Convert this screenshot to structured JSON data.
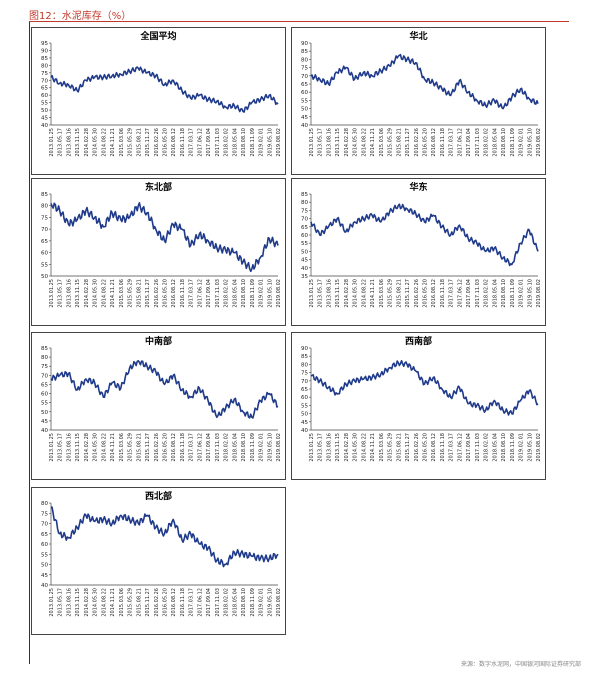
{
  "header": {
    "title": "图12：水泥库存（%）"
  },
  "footer": {
    "source": "来源：数字水泥网，中国银河国际证券研究部"
  },
  "colors": {
    "line": "#1f3a8a",
    "title_accent": "#c0392b"
  },
  "x_ticks": [
    "2013.01.25",
    "2013.05.17",
    "2013.08.16",
    "2013.11.15",
    "2014.02.28",
    "2014.05.30",
    "2014.08.22",
    "2014.11.21",
    "2015.03.06",
    "2015.05.29",
    "2015.08.21",
    "2015.11.27",
    "2016.02.26",
    "2016.05.20",
    "2016.08.12",
    "2016.11.18",
    "2017.03.17",
    "2017.06.12",
    "2017.09.04",
    "2017.11.03",
    "2018.02.02",
    "2018.05.04",
    "2018.08.10",
    "2018.11.09",
    "2019.02.01",
    "2019.05.10",
    "2019.08.02"
  ],
  "chart_data": [
    {
      "type": "line",
      "title": "全国平均",
      "ylim": [
        40,
        95
      ],
      "yticks": [
        40,
        45,
        50,
        55,
        60,
        65,
        70,
        75,
        80,
        85,
        90,
        95
      ],
      "x": [
        "2013.01.25",
        "2013.05.17",
        "2013.08.16",
        "2013.11.15",
        "2014.02.28",
        "2014.05.30",
        "2014.08.22",
        "2014.11.21",
        "2015.03.06",
        "2015.05.29",
        "2015.08.21",
        "2015.11.27",
        "2016.02.26",
        "2016.05.20",
        "2016.08.12",
        "2016.11.18",
        "2017.03.17",
        "2017.06.12",
        "2017.09.04",
        "2017.11.03",
        "2018.02.02",
        "2018.05.04",
        "2018.08.10",
        "2018.11.09",
        "2019.02.01",
        "2019.05.10",
        "2019.08.02"
      ],
      "values": [
        72,
        68,
        67,
        63,
        70,
        72,
        72,
        73,
        74,
        76,
        78,
        75,
        73,
        67,
        70,
        63,
        58,
        60,
        57,
        56,
        52,
        53,
        49,
        55,
        57,
        60,
        54
      ]
    },
    {
      "type": "line",
      "title": "华北",
      "ylim": [
        40,
        90
      ],
      "yticks": [
        40,
        45,
        50,
        55,
        60,
        65,
        70,
        75,
        80,
        85,
        90
      ],
      "x": [
        "2013.01.25",
        "2013.05.17",
        "2013.08.16",
        "2013.11.15",
        "2014.02.28",
        "2014.05.30",
        "2014.08.22",
        "2014.11.21",
        "2015.03.06",
        "2015.05.29",
        "2015.08.21",
        "2015.11.27",
        "2016.02.26",
        "2016.05.20",
        "2016.08.12",
        "2016.11.18",
        "2017.03.17",
        "2017.06.12",
        "2017.09.04",
        "2017.11.03",
        "2018.02.02",
        "2018.05.04",
        "2018.08.10",
        "2018.11.09",
        "2019.02.01",
        "2019.05.10",
        "2019.08.02"
      ],
      "values": [
        70,
        68,
        65,
        72,
        75,
        68,
        72,
        70,
        73,
        76,
        82,
        80,
        78,
        68,
        66,
        62,
        58,
        67,
        60,
        55,
        52,
        55,
        50,
        57,
        62,
        56,
        53
      ]
    },
    {
      "type": "line",
      "title": "东北部",
      "ylim": [
        50,
        85
      ],
      "yticks": [
        50,
        55,
        60,
        65,
        70,
        75,
        80,
        85
      ],
      "x": [
        "2013.01.25",
        "2013.05.17",
        "2013.08.16",
        "2013.11.15",
        "2014.02.28",
        "2014.05.30",
        "2014.08.22",
        "2014.11.21",
        "2015.03.06",
        "2015.05.29",
        "2015.08.21",
        "2015.11.27",
        "2016.02.26",
        "2016.05.20",
        "2016.08.12",
        "2016.11.18",
        "2017.03.17",
        "2017.06.12",
        "2017.09.04",
        "2017.11.03",
        "2018.02.02",
        "2018.05.04",
        "2018.08.10",
        "2018.11.09",
        "2019.02.01",
        "2019.05.10",
        "2019.08.02"
      ],
      "values": [
        81,
        78,
        72,
        74,
        78,
        75,
        71,
        77,
        74,
        75,
        80,
        77,
        70,
        65,
        72,
        70,
        63,
        68,
        65,
        62,
        61,
        60,
        56,
        53,
        58,
        66,
        63
      ]
    },
    {
      "type": "line",
      "title": "华东",
      "ylim": [
        35,
        85
      ],
      "yticks": [
        35,
        40,
        45,
        50,
        55,
        60,
        65,
        70,
        75,
        80,
        85
      ],
      "x": [
        "2013.01.25",
        "2013.05.17",
        "2013.08.16",
        "2013.11.15",
        "2014.02.28",
        "2014.05.30",
        "2014.08.22",
        "2014.11.21",
        "2015.03.06",
        "2015.05.29",
        "2015.08.21",
        "2015.11.27",
        "2016.02.26",
        "2016.05.20",
        "2016.08.12",
        "2016.11.18",
        "2017.03.17",
        "2017.06.12",
        "2017.09.04",
        "2017.11.03",
        "2018.02.02",
        "2018.05.04",
        "2018.08.10",
        "2018.11.09",
        "2019.02.01",
        "2019.05.10",
        "2019.08.02"
      ],
      "values": [
        68,
        60,
        65,
        70,
        62,
        68,
        70,
        72,
        68,
        74,
        78,
        76,
        73,
        68,
        72,
        65,
        60,
        66,
        58,
        55,
        50,
        52,
        46,
        42,
        55,
        63,
        50
      ]
    },
    {
      "type": "line",
      "title": "中南部",
      "ylim": [
        40,
        85
      ],
      "yticks": [
        40,
        45,
        50,
        55,
        60,
        65,
        70,
        75,
        80,
        85
      ],
      "x": [
        "2013.01.25",
        "2013.05.17",
        "2013.08.16",
        "2013.11.15",
        "2014.02.28",
        "2014.05.30",
        "2014.08.22",
        "2014.11.21",
        "2015.03.06",
        "2015.05.29",
        "2015.08.21",
        "2015.11.27",
        "2016.02.26",
        "2016.05.20",
        "2016.08.12",
        "2016.11.18",
        "2017.03.17",
        "2017.06.12",
        "2017.09.04",
        "2017.11.03",
        "2018.02.02",
        "2018.05.04",
        "2018.08.10",
        "2018.11.09",
        "2019.02.01",
        "2019.05.10",
        "2019.08.02"
      ],
      "values": [
        68,
        70,
        71,
        62,
        68,
        66,
        58,
        66,
        63,
        74,
        78,
        75,
        72,
        65,
        70,
        62,
        58,
        63,
        56,
        47,
        52,
        57,
        50,
        47,
        56,
        60,
        53
      ]
    },
    {
      "type": "line",
      "title": "西南部",
      "ylim": [
        40,
        90
      ],
      "yticks": [
        40,
        45,
        50,
        55,
        60,
        65,
        70,
        75,
        80,
        85,
        90
      ],
      "x": [
        "2013.01.25",
        "2013.05.17",
        "2013.08.16",
        "2013.11.15",
        "2014.02.28",
        "2014.05.30",
        "2014.08.22",
        "2014.11.21",
        "2015.03.06",
        "2015.05.29",
        "2015.08.21",
        "2015.11.27",
        "2016.02.26",
        "2016.05.20",
        "2016.08.12",
        "2016.11.18",
        "2017.03.17",
        "2017.06.12",
        "2017.09.04",
        "2017.11.03",
        "2018.02.02",
        "2018.05.04",
        "2018.08.10",
        "2018.11.09",
        "2019.02.01",
        "2019.05.10",
        "2019.08.02"
      ],
      "values": [
        73,
        70,
        66,
        62,
        68,
        70,
        71,
        72,
        74,
        78,
        81,
        80,
        76,
        68,
        72,
        65,
        60,
        66,
        56,
        55,
        52,
        58,
        52,
        50,
        58,
        64,
        56
      ]
    },
    {
      "type": "line",
      "title": "西北部",
      "ylim": [
        40,
        80
      ],
      "yticks": [
        40,
        45,
        50,
        55,
        60,
        65,
        70,
        75,
        80
      ],
      "x": [
        "2013.01.25",
        "2013.05.17",
        "2013.08.16",
        "2013.11.15",
        "2014.02.28",
        "2014.05.30",
        "2014.08.22",
        "2014.11.21",
        "2015.03.06",
        "2015.05.29",
        "2015.08.21",
        "2015.11.27",
        "2016.02.26",
        "2016.05.20",
        "2016.08.12",
        "2016.11.18",
        "2017.03.17",
        "2017.06.12",
        "2017.09.04",
        "2017.11.03",
        "2018.02.02",
        "2018.05.04",
        "2018.08.10",
        "2018.11.09",
        "2019.02.01",
        "2019.05.10",
        "2019.08.02"
      ],
      "values": [
        78,
        65,
        63,
        68,
        74,
        71,
        72,
        70,
        74,
        72,
        70,
        74,
        68,
        65,
        72,
        62,
        65,
        60,
        58,
        52,
        50,
        56,
        55,
        54,
        53,
        53,
        55
      ]
    }
  ]
}
